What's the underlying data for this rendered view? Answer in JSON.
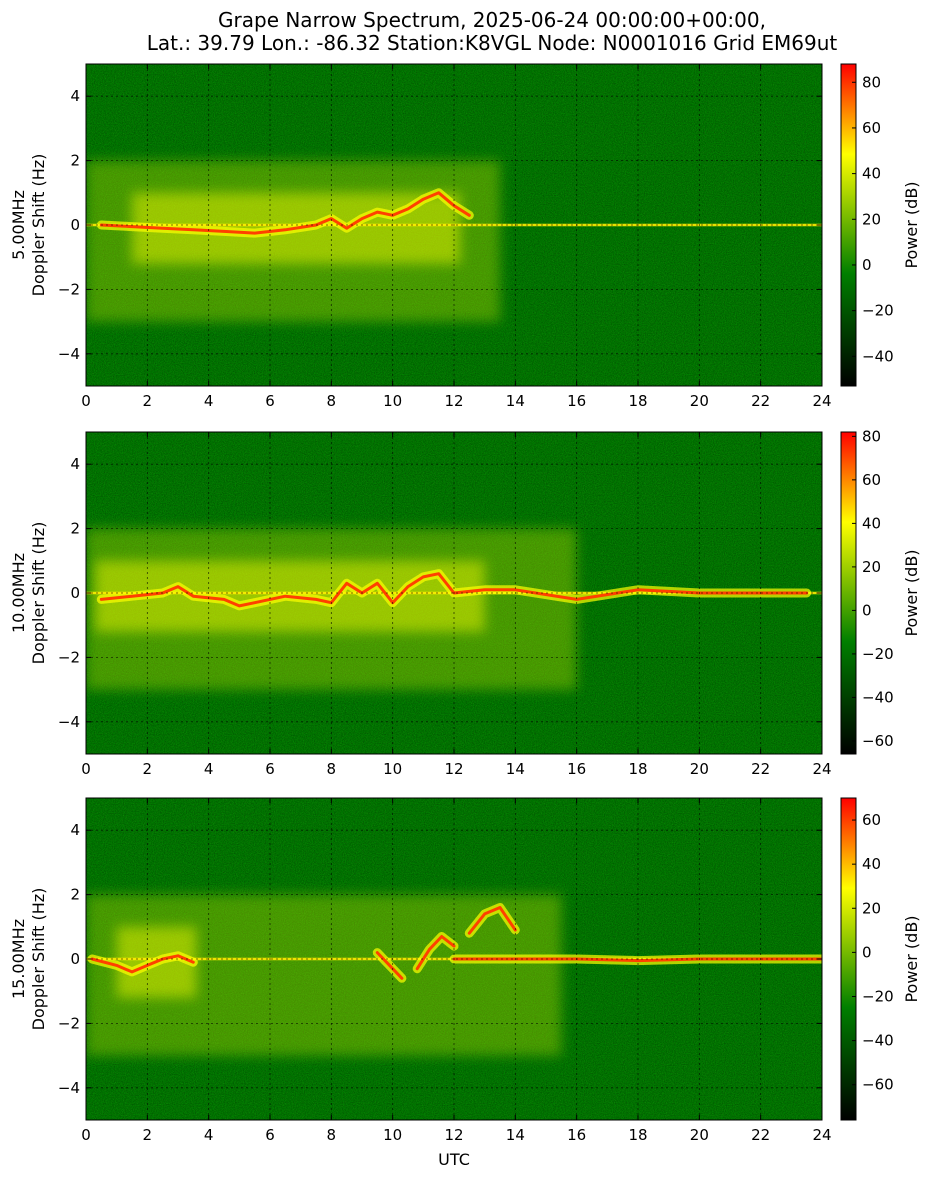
{
  "figure": {
    "title_line1": "Grape Narrow Spectrum, 2025-06-24 00:00:00+00:00,",
    "title_line2": "Lat.: 39.79 Lon.: -86.32 Station:K8VGL Node: N0001016 Grid EM69ut",
    "xlabel": "UTC",
    "colorbar_label": "Power (dB)",
    "colors": {
      "background": "#007f00",
      "colormap": [
        "#000000",
        "#007f00",
        "#ffff00",
        "#ff0000"
      ]
    }
  },
  "chart_data": [
    {
      "type": "heatmap",
      "ylabel_line1": "5.00MHz",
      "ylabel_line2": "Doppler Shift (Hz)",
      "xlim": [
        0,
        24
      ],
      "ylim": [
        -5,
        5
      ],
      "xticks": [
        "0",
        "2",
        "4",
        "6",
        "8",
        "10",
        "12",
        "14",
        "16",
        "18",
        "20",
        "22",
        "24"
      ],
      "yticks": [
        "4",
        "2",
        "0",
        "−2",
        "−4"
      ],
      "grid": true,
      "colorbar": {
        "min": -53,
        "max": 88,
        "ticks": [
          "80",
          "60",
          "40",
          "20",
          "0",
          "−20",
          "−40"
        ],
        "tick_values": [
          80,
          60,
          40,
          20,
          0,
          -20,
          -40
        ]
      },
      "carrier_visible_utc": [
        0,
        24
      ],
      "strong_doppler_utc": [
        1.5,
        12.2
      ],
      "broad_spread_utc": [
        0,
        13.5
      ],
      "traces": [
        {
          "utc": [
            0.5,
            1.5,
            2.5,
            3.5,
            4.5,
            5.5,
            6.5,
            7.5,
            8.0,
            8.5,
            9.0,
            9.5,
            10.0,
            10.5,
            11.0,
            11.5,
            12.0,
            12.5
          ],
          "doppler_hz": [
            0.0,
            -0.05,
            -0.1,
            -0.15,
            -0.2,
            -0.25,
            -0.15,
            0.0,
            0.2,
            -0.1,
            0.2,
            0.4,
            0.3,
            0.5,
            0.8,
            1.0,
            0.6,
            0.3
          ]
        }
      ]
    },
    {
      "type": "heatmap",
      "ylabel_line1": "10.00MHz",
      "ylabel_line2": "Doppler Shift (Hz)",
      "xlim": [
        0,
        24
      ],
      "ylim": [
        -5,
        5
      ],
      "xticks": [
        "0",
        "2",
        "4",
        "6",
        "8",
        "10",
        "12",
        "14",
        "16",
        "18",
        "20",
        "22",
        "24"
      ],
      "yticks": [
        "4",
        "2",
        "0",
        "−2",
        "−4"
      ],
      "grid": true,
      "colorbar": {
        "min": -66,
        "max": 82,
        "ticks": [
          "80",
          "60",
          "40",
          "20",
          "0",
          "−20",
          "−40",
          "−60"
        ],
        "tick_values": [
          80,
          60,
          40,
          20,
          0,
          -20,
          -40,
          -60
        ]
      },
      "carrier_visible_utc": [
        0,
        24
      ],
      "strong_doppler_utc": [
        0.3,
        13.0
      ],
      "broad_spread_utc": [
        0,
        16.0
      ],
      "traces": [
        {
          "utc": [
            0.5,
            1.5,
            2.5,
            3.0,
            3.5,
            4.5,
            5.0,
            5.5,
            6.5,
            7.5,
            8.0,
            8.5,
            9.0,
            9.5,
            10.0,
            10.5,
            11.0,
            11.5,
            12.0,
            13.0,
            14.0,
            16.0,
            18.0,
            20.0,
            22.0,
            23.5
          ],
          "doppler_hz": [
            -0.2,
            -0.1,
            0.0,
            0.2,
            -0.1,
            -0.2,
            -0.4,
            -0.3,
            -0.1,
            -0.2,
            -0.3,
            0.3,
            0.0,
            0.3,
            -0.3,
            0.2,
            0.5,
            0.6,
            0.0,
            0.1,
            0.1,
            -0.2,
            0.1,
            0.0,
            0.0,
            0.0
          ]
        }
      ]
    },
    {
      "type": "heatmap",
      "ylabel_line1": "15.00MHz",
      "ylabel_line2": "Doppler Shift (Hz)",
      "xlim": [
        0,
        24
      ],
      "ylim": [
        -5,
        5
      ],
      "xticks": [
        "0",
        "2",
        "4",
        "6",
        "8",
        "10",
        "12",
        "14",
        "16",
        "18",
        "20",
        "22",
        "24"
      ],
      "yticks": [
        "4",
        "2",
        "0",
        "−2",
        "−4"
      ],
      "grid": true,
      "colorbar": {
        "min": -76,
        "max": 70,
        "ticks": [
          "60",
          "40",
          "20",
          "0",
          "−20",
          "−40",
          "−60"
        ],
        "tick_values": [
          60,
          40,
          20,
          0,
          -20,
          -40,
          -60
        ]
      },
      "carrier_visible_utc": [
        0,
        24
      ],
      "strong_doppler_utc": [
        1.0,
        3.6
      ],
      "broad_spread_utc": [
        0,
        15.5
      ],
      "traces": [
        {
          "utc": [
            0.2,
            1.0,
            1.5,
            2.0,
            2.5,
            3.0,
            3.5
          ],
          "doppler_hz": [
            0.0,
            -0.2,
            -0.4,
            -0.2,
            0.0,
            0.1,
            -0.1
          ]
        },
        {
          "utc": [
            9.5,
            10.0,
            10.3
          ],
          "doppler_hz": [
            0.2,
            -0.3,
            -0.6
          ]
        },
        {
          "utc": [
            10.8,
            11.2,
            11.6,
            12.0
          ],
          "doppler_hz": [
            -0.3,
            0.3,
            0.7,
            0.4
          ]
        },
        {
          "utc": [
            12.5,
            13.0,
            13.5,
            14.0
          ],
          "doppler_hz": [
            0.8,
            1.4,
            1.6,
            0.9
          ]
        },
        {
          "utc": [
            12.0,
            14.0,
            16.0,
            18.0,
            20.0,
            22.0,
            24.0
          ],
          "doppler_hz": [
            0.0,
            0.0,
            0.0,
            -0.05,
            0.0,
            0.0,
            0.0
          ]
        }
      ]
    }
  ]
}
